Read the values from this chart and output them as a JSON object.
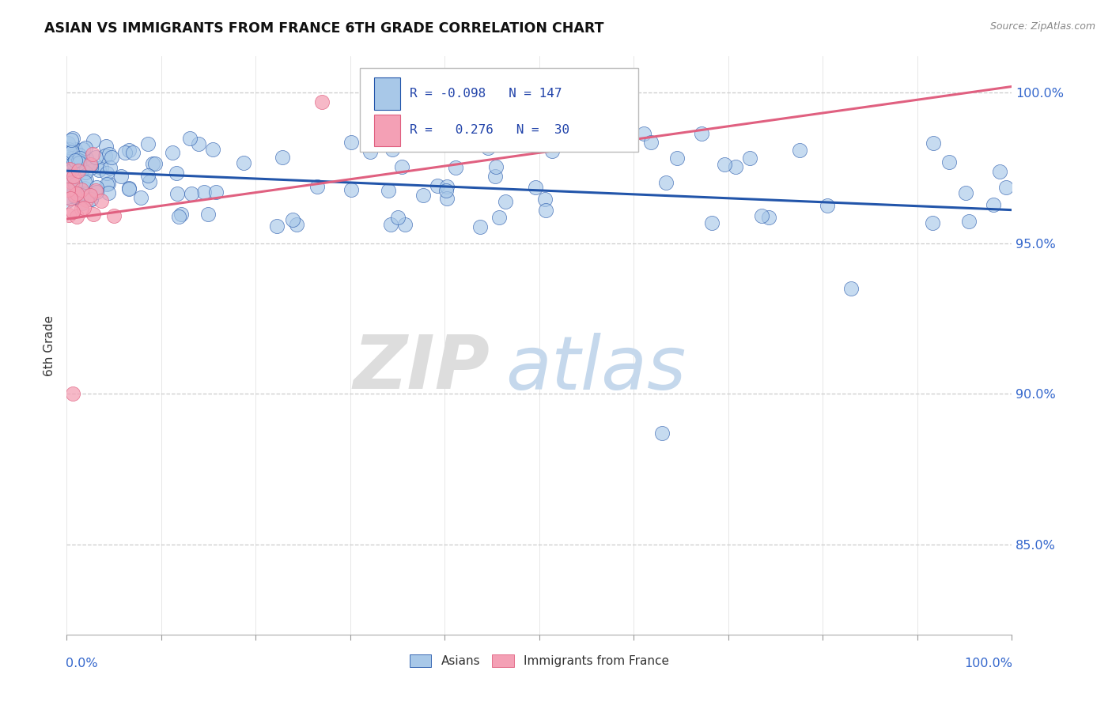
{
  "title": "ASIAN VS IMMIGRANTS FROM FRANCE 6TH GRADE CORRELATION CHART",
  "source": "Source: ZipAtlas.com",
  "ylabel": "6th Grade",
  "xlim": [
    0.0,
    1.0
  ],
  "ylim": [
    0.82,
    1.012
  ],
  "yticks": [
    0.85,
    0.9,
    0.95,
    1.0
  ],
  "ytick_labels": [
    "85.0%",
    "90.0%",
    "95.0%",
    "100.0%"
  ],
  "legend_r_asian": "-0.098",
  "legend_n_asian": "147",
  "legend_r_france": "0.276",
  "legend_n_france": "30",
  "color_asian": "#A8C8E8",
  "color_france": "#F4A0B5",
  "line_color_asian": "#2255AA",
  "line_color_france": "#E06080",
  "background_color": "#ffffff",
  "blue_line_start": 0.974,
  "blue_line_end": 0.961,
  "pink_line_start": 0.958,
  "pink_line_end": 1.002,
  "seed": 42
}
